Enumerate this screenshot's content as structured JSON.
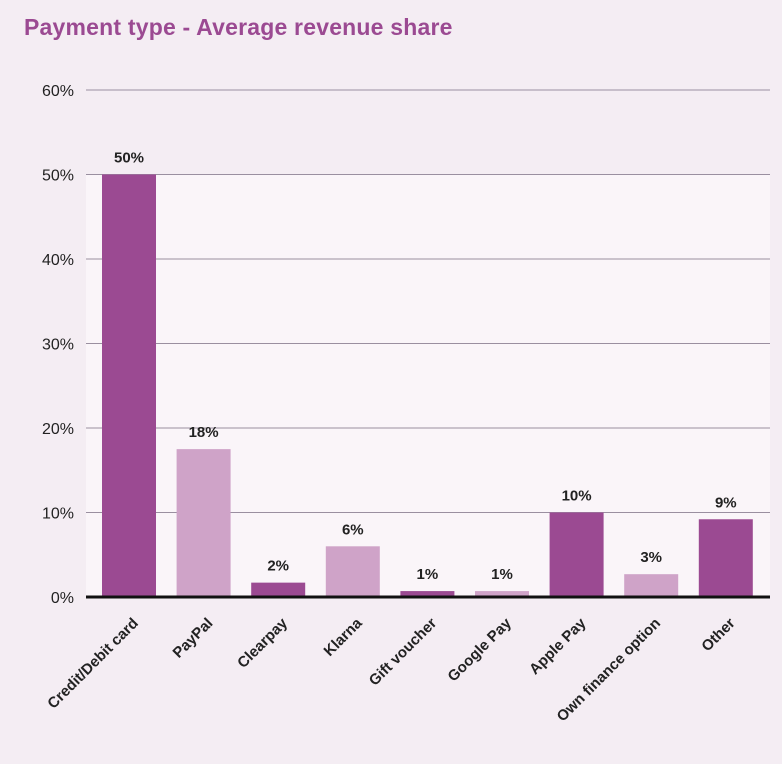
{
  "chart_data": {
    "type": "bar",
    "title": "Payment type - Average revenue share",
    "xlabel": "",
    "ylabel": "",
    "ylim": [
      0,
      60
    ],
    "yticks": [
      0,
      10,
      20,
      30,
      40,
      50,
      60
    ],
    "ytick_suffix": "%",
    "grid": true,
    "categories": [
      "Credit/Debit card",
      "PayPal",
      "Clearpay",
      "Klarna",
      "Gift voucher",
      "Google Pay",
      "Apple Pay",
      "Own finance option",
      "Other"
    ],
    "values": [
      50,
      17.5,
      1.7,
      6,
      0.7,
      0.7,
      10,
      2.7,
      9.2
    ],
    "data_labels": [
      "50%",
      "18%",
      "2%",
      "6%",
      "1%",
      "1%",
      "10%",
      "3%",
      "9%"
    ],
    "colors": [
      "#9b4a92",
      "#cfa3c8",
      "#9b4a92",
      "#cfa3c8",
      "#9b4a92",
      "#cfa3c8",
      "#9b4a92",
      "#cfa3c8",
      "#9b4a92"
    ]
  },
  "style": {
    "title_color": "#9b4a92",
    "background": "#f4edf3",
    "plot_band": "#faf5f9",
    "gridline_color": "#9a8fa0",
    "axis_color": "#111111"
  }
}
